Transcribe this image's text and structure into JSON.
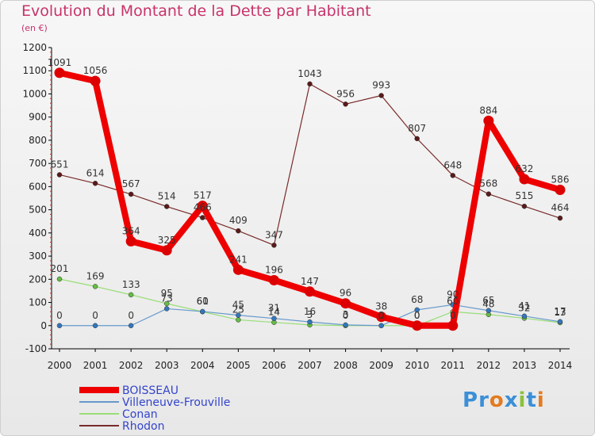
{
  "title": "Evolution du Montant de la Dette par Habitant",
  "unit_label": "(en €)",
  "brand": "Proxiti",
  "chart_data": {
    "type": "line",
    "x": [
      2000,
      2001,
      2002,
      2003,
      2004,
      2005,
      2006,
      2007,
      2008,
      2009,
      2010,
      2011,
      2012,
      2013,
      2014
    ],
    "ylim": [
      -100,
      1200
    ],
    "yticks": [
      -100,
      0,
      100,
      200,
      300,
      400,
      500,
      600,
      700,
      800,
      900,
      1000,
      1100,
      1200
    ],
    "grid": false,
    "legend_position": "bottom-left",
    "series": [
      {
        "name": "Rhodon",
        "color": "#7a2a2a",
        "marker": "#5a1a1a",
        "width": 1.2,
        "values": [
          651,
          614,
          567,
          514,
          466,
          409,
          347,
          1043,
          956,
          993,
          807,
          648,
          568,
          515,
          464
        ],
        "labels": [
          "651",
          "614",
          "567",
          "514",
          "466",
          "409",
          "347",
          "1043",
          "956",
          "993",
          "807",
          "648",
          "568",
          "515",
          "464"
        ]
      },
      {
        "name": "Conan",
        "color": "#99dd77",
        "marker": "#66bb44",
        "width": 1.2,
        "values": [
          201,
          169,
          133,
          95,
          60,
          25,
          14,
          3,
          0,
          0,
          0,
          60,
          48,
          32,
          13
        ],
        "labels": [
          "201",
          "169",
          "133",
          "95",
          "60",
          "25",
          "14",
          "3",
          "0",
          "0",
          "0",
          "60",
          "48",
          "32",
          "13"
        ]
      },
      {
        "name": "Villeneuve-Frouville",
        "color": "#6699cc",
        "marker": "#3377bb",
        "width": 1.2,
        "values": [
          0,
          0,
          0,
          73,
          61,
          45,
          31,
          16,
          3,
          0,
          68,
          90,
          65,
          41,
          17
        ],
        "labels": [
          "0",
          "0",
          "0",
          "73",
          "61",
          "45",
          "31",
          "16",
          "3",
          "0",
          "68",
          "90",
          "65",
          "41",
          "17"
        ]
      },
      {
        "name": "BOISSEAU",
        "color": "#ee0000",
        "marker": "#dd0000",
        "width": 8,
        "values": [
          1091,
          1056,
          364,
          325,
          517,
          241,
          196,
          147,
          96,
          38,
          0,
          0,
          884,
          632,
          586
        ],
        "labels": [
          "1091",
          "1056",
          "364",
          "325",
          "517",
          "241",
          "196",
          "147",
          "96",
          "38",
          "0",
          "0",
          "884",
          "632",
          "586"
        ]
      }
    ],
    "legend": [
      {
        "name": "BOISSEAU",
        "color": "#ee0000"
      },
      {
        "name": "Villeneuve-Frouville",
        "color": "#6699cc"
      },
      {
        "name": "Conan",
        "color": "#99dd77"
      },
      {
        "name": "Rhodon",
        "color": "#7a2a2a"
      }
    ]
  }
}
